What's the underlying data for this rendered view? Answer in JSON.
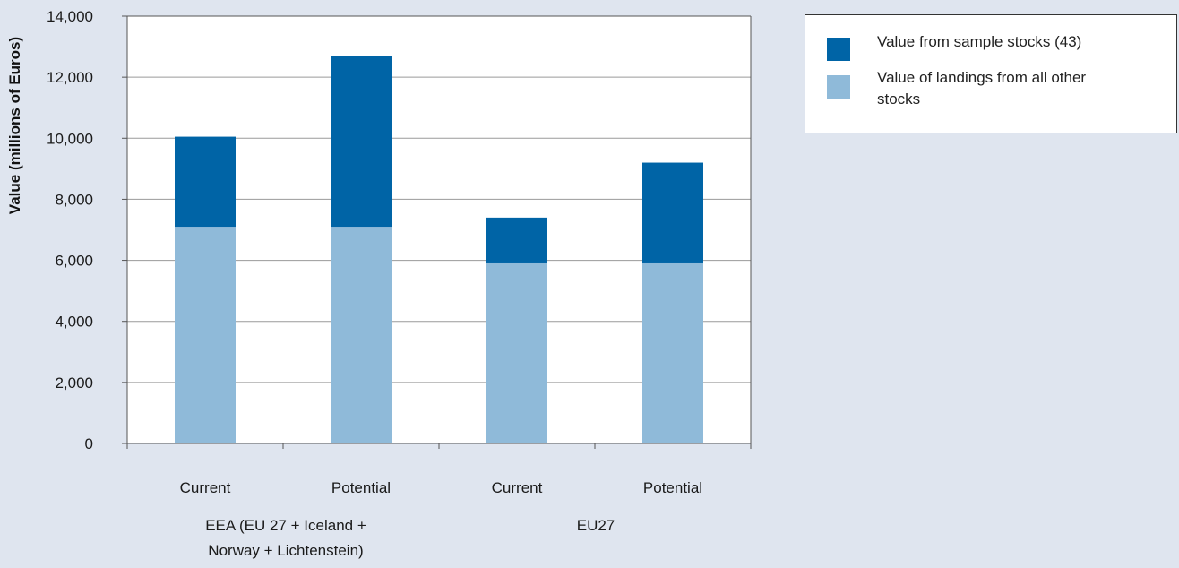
{
  "chart_data": {
    "type": "bar",
    "stacked": true,
    "ylabel": "Value (millions of Euros)",
    "xlabel": "",
    "title": "",
    "ylim": [
      0,
      14000
    ],
    "yticks": [
      "0",
      "2,000",
      "4,000",
      "6,000",
      "8,000",
      "10,000",
      "12,000",
      "14,000"
    ],
    "ytick_values": [
      0,
      2000,
      4000,
      6000,
      8000,
      10000,
      12000,
      14000
    ],
    "grid": true,
    "legend_position": "top-right",
    "categories": [
      "Current",
      "Potential",
      "Current",
      "Potential"
    ],
    "groups": [
      {
        "label": "EEA (EU 27 + Iceland + Norway + Lichtenstein)",
        "categories": [
          0,
          1
        ]
      },
      {
        "label": "EU27",
        "categories": [
          2,
          3
        ]
      }
    ],
    "series": [
      {
        "name": "Value of landings from all other stocks",
        "color": "#8fbad9",
        "values": [
          7100,
          7100,
          5900,
          5900
        ]
      },
      {
        "name": "Value from sample stocks (43)",
        "color": "#0064a6",
        "values": [
          2950,
          5600,
          1500,
          3300
        ]
      }
    ]
  },
  "legend": {
    "items": [
      {
        "label": "Value from sample stocks (43)",
        "color": "#0064a6"
      },
      {
        "label": "Value of landings from all other stocks",
        "color": "#8fbad9"
      }
    ]
  },
  "group_labels": {
    "eea_line1": "EEA (EU 27 + Iceland +",
    "eea_line2": "Norway + Lichtenstein)",
    "eu27": "EU27"
  }
}
